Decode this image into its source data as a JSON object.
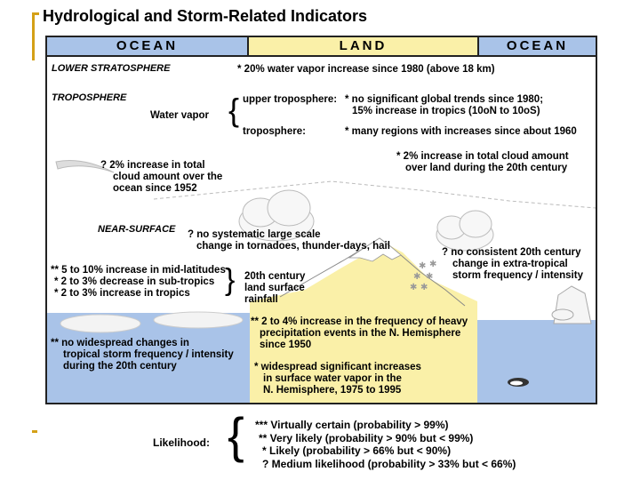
{
  "title": "Hydrological and Storm-Related Indicators",
  "header": {
    "ocean_left": "OCEAN",
    "land": "LAND",
    "ocean_right": "OCEAN"
  },
  "colors": {
    "ocean": "#a9c3e8",
    "land": "#faf0a8",
    "accent": "#d4a017",
    "border": "#222222"
  },
  "zones": {
    "lower_stratosphere": "LOWER STRATOSPHERE",
    "troposphere": "TROPOSPHERE",
    "near_surface": "NEAR-SURFACE"
  },
  "indicators": {
    "strat_vapor": "* 20% water vapor increase since 1980 (above 18 km)",
    "water_vapor_label": "Water vapor",
    "upper_trop_label": "upper troposphere:",
    "upper_trop_text_1": "* no significant global trends since 1980;",
    "upper_trop_text_2": "15% increase in tropics (10oN to 10oS)",
    "trop_label": "troposphere:",
    "trop_text": "* many regions with increases since about 1960",
    "cloud_ocean": [
      "? 2% increase in total",
      "cloud amount over the",
      "ocean since 1952"
    ],
    "cloud_land": [
      "* 2% increase in total cloud amount",
      "over land during the 20th century"
    ],
    "tornado": [
      "? no systematic large scale",
      "change in tornadoes, thunder-days, hail"
    ],
    "extratrop_storm": [
      "? no consistent 20th century",
      "change in extra-tropical",
      "storm frequency / intensity"
    ],
    "precip_lat": [
      "** 5 to 10% increase in mid-latitudes",
      "* 2 to 3% decrease in sub-tropics",
      "* 2 to 3% increase in tropics"
    ],
    "precip_label": [
      "20th century",
      "land surface",
      "rainfall"
    ],
    "heavy_precip": [
      "** 2 to 4% increase in the frequency of heavy",
      "precipitation events in the N. Hemisphere",
      "since 1950"
    ],
    "surface_vapor": [
      "* widespread significant increases",
      "in surface water vapor in the",
      "N. Hemisphere, 1975 to 1995"
    ],
    "tropical_storm": [
      "** no widespread changes in",
      "tropical storm frequency / intensity",
      "during the 20th century"
    ]
  },
  "legend": {
    "label": "Likelihood:",
    "items": [
      "*** Virtually certain (probability > 99%)",
      "** Very likely (probability > 90% but < 99%)",
      "* Likely (probability > 66% but < 90%)",
      "? Medium likelihood (probability > 33% but < 66%)"
    ]
  }
}
